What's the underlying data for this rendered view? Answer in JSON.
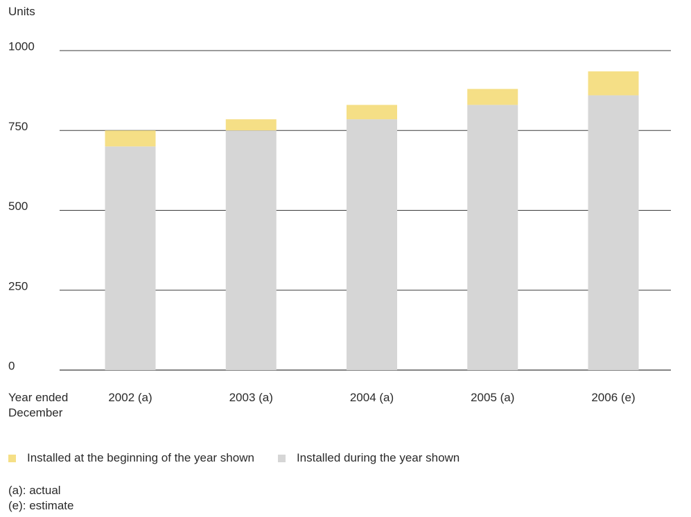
{
  "chart_data": {
    "type": "bar",
    "stacked": true,
    "ylabel": "Units",
    "xlabel": "Year ended December",
    "ylim": [
      0,
      1000
    ],
    "yticks": [
      0,
      250,
      500,
      750,
      1000
    ],
    "grid": true,
    "categories": [
      "2002 (a)",
      "2003 (a)",
      "2004 (a)",
      "2005 (a)",
      "2006 (e)"
    ],
    "series": [
      {
        "name": "Installed during the year shown",
        "color": "#d6d6d6",
        "values": [
          700,
          750,
          785,
          830,
          860
        ]
      },
      {
        "name": "Installed at the beginning of the year shown",
        "color": "#f5df86",
        "values": [
          50,
          35,
          45,
          50,
          75
        ]
      }
    ],
    "legend_position": "bottom-left"
  },
  "legend": [
    {
      "label": "Installed at the beginning of the year shown",
      "color": "#f5df86"
    },
    {
      "label": "Installed during the year shown",
      "color": "#d6d6d6"
    }
  ],
  "notes": [
    "(a): actual",
    "(e): estimate"
  ]
}
